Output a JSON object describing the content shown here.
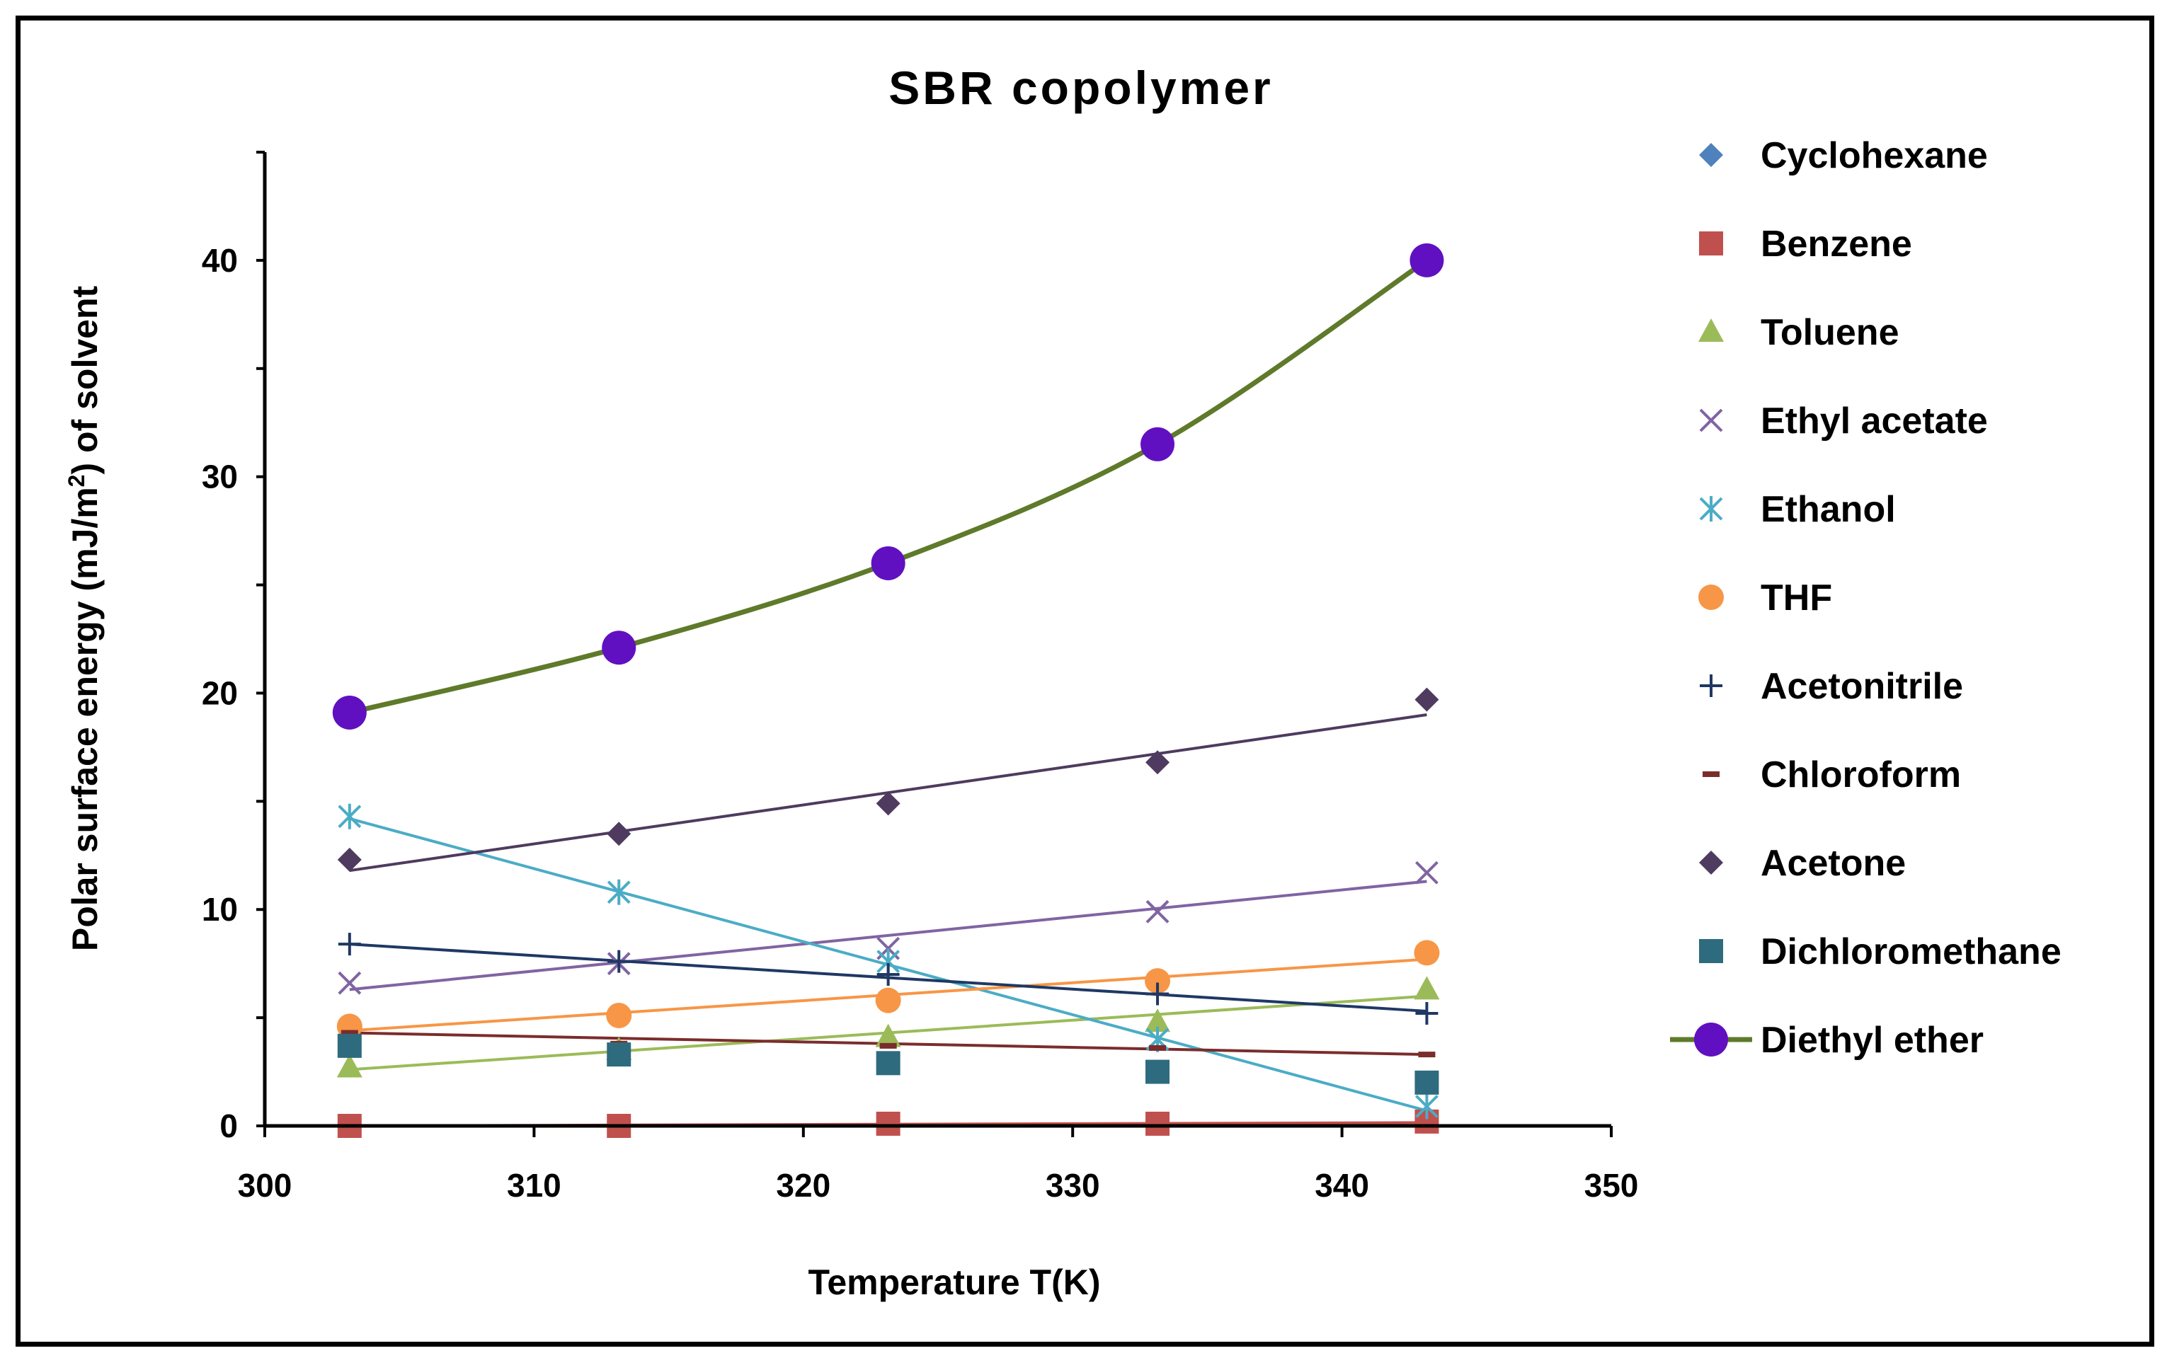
{
  "chart_data": {
    "type": "line",
    "title": "SBR copolymer",
    "xlabel": "Temperature T(K)",
    "ylabel": {
      "prefix": "Polar surface energy (mJ/m",
      "superscript": "2",
      "suffix": ") of solvent"
    },
    "xlim": [
      300,
      350
    ],
    "ylim": [
      0,
      45
    ],
    "xticks": [
      300,
      310,
      320,
      330,
      340,
      350
    ],
    "yticks": [
      0,
      10,
      20,
      30,
      40
    ],
    "x": [
      303.15,
      313.15,
      323.15,
      333.15,
      343.15
    ],
    "series": [
      {
        "name": "Cyclohexane",
        "marker": "diamond",
        "color": "#4F81BD",
        "values": [
          null,
          null,
          null,
          null,
          null
        ]
      },
      {
        "name": "Benzene",
        "marker": "square",
        "color": "#C0504D",
        "values": [
          0,
          0,
          0.1,
          0.1,
          0.2
        ],
        "trend": [
          0,
          0,
          0.05,
          0.1,
          0.15
        ]
      },
      {
        "name": "Toluene",
        "marker": "triangle",
        "color": "#9BBB59",
        "values": [
          2.7,
          3.5,
          4.1,
          4.8,
          6.3
        ],
        "trend": [
          2.6,
          3.4,
          4.3,
          5.1,
          6.0
        ]
      },
      {
        "name": "Ethyl acetate",
        "marker": "x",
        "color": "#8064A2",
        "values": [
          6.6,
          7.5,
          8.2,
          9.9,
          11.7
        ],
        "trend": [
          6.3,
          7.6,
          8.8,
          10.0,
          11.3
        ]
      },
      {
        "name": "Ethanol",
        "marker": "star",
        "color": "#4BACC6",
        "values": [
          14.3,
          10.8,
          7.6,
          4.0,
          0.9
        ],
        "trend": [
          14.2,
          10.8,
          7.4,
          4.1,
          0.7
        ]
      },
      {
        "name": "THF",
        "marker": "circle",
        "color": "#F79646",
        "values": [
          4.6,
          5.1,
          5.8,
          6.7,
          8.0
        ],
        "trend": [
          4.4,
          5.2,
          6.0,
          6.9,
          7.7
        ]
      },
      {
        "name": "Acetonitrile",
        "marker": "plus",
        "color": "#1F3864",
        "values": [
          8.4,
          7.6,
          7.0,
          6.1,
          5.2
        ],
        "trend": [
          8.4,
          7.6,
          6.9,
          6.1,
          5.3
        ]
      },
      {
        "name": "Chloroform",
        "marker": "dash",
        "color": "#7B2C2C",
        "values": [
          4.3,
          3.8,
          3.7,
          3.6,
          3.3
        ],
        "trend": [
          4.3,
          4.1,
          3.8,
          3.6,
          3.3
        ]
      },
      {
        "name": "Acetone",
        "marker": "diamond",
        "color": "#4E3B5F",
        "values": [
          12.3,
          13.5,
          14.9,
          16.8,
          19.7
        ],
        "trend": [
          11.8,
          13.6,
          15.4,
          17.2,
          19.0
        ]
      },
      {
        "name": "Dichloromethane",
        "marker": "square",
        "color": "#2E6B7E",
        "values": [
          3.7,
          3.3,
          2.9,
          2.5,
          2.0
        ]
      },
      {
        "name": "Diethyl ether",
        "marker": "circle-large",
        "color": "#6010C0",
        "line_color": "#5E7A2A",
        "values": [
          19.1,
          22.1,
          26.0,
          31.5,
          40.0
        ],
        "smooth": true
      }
    ]
  }
}
